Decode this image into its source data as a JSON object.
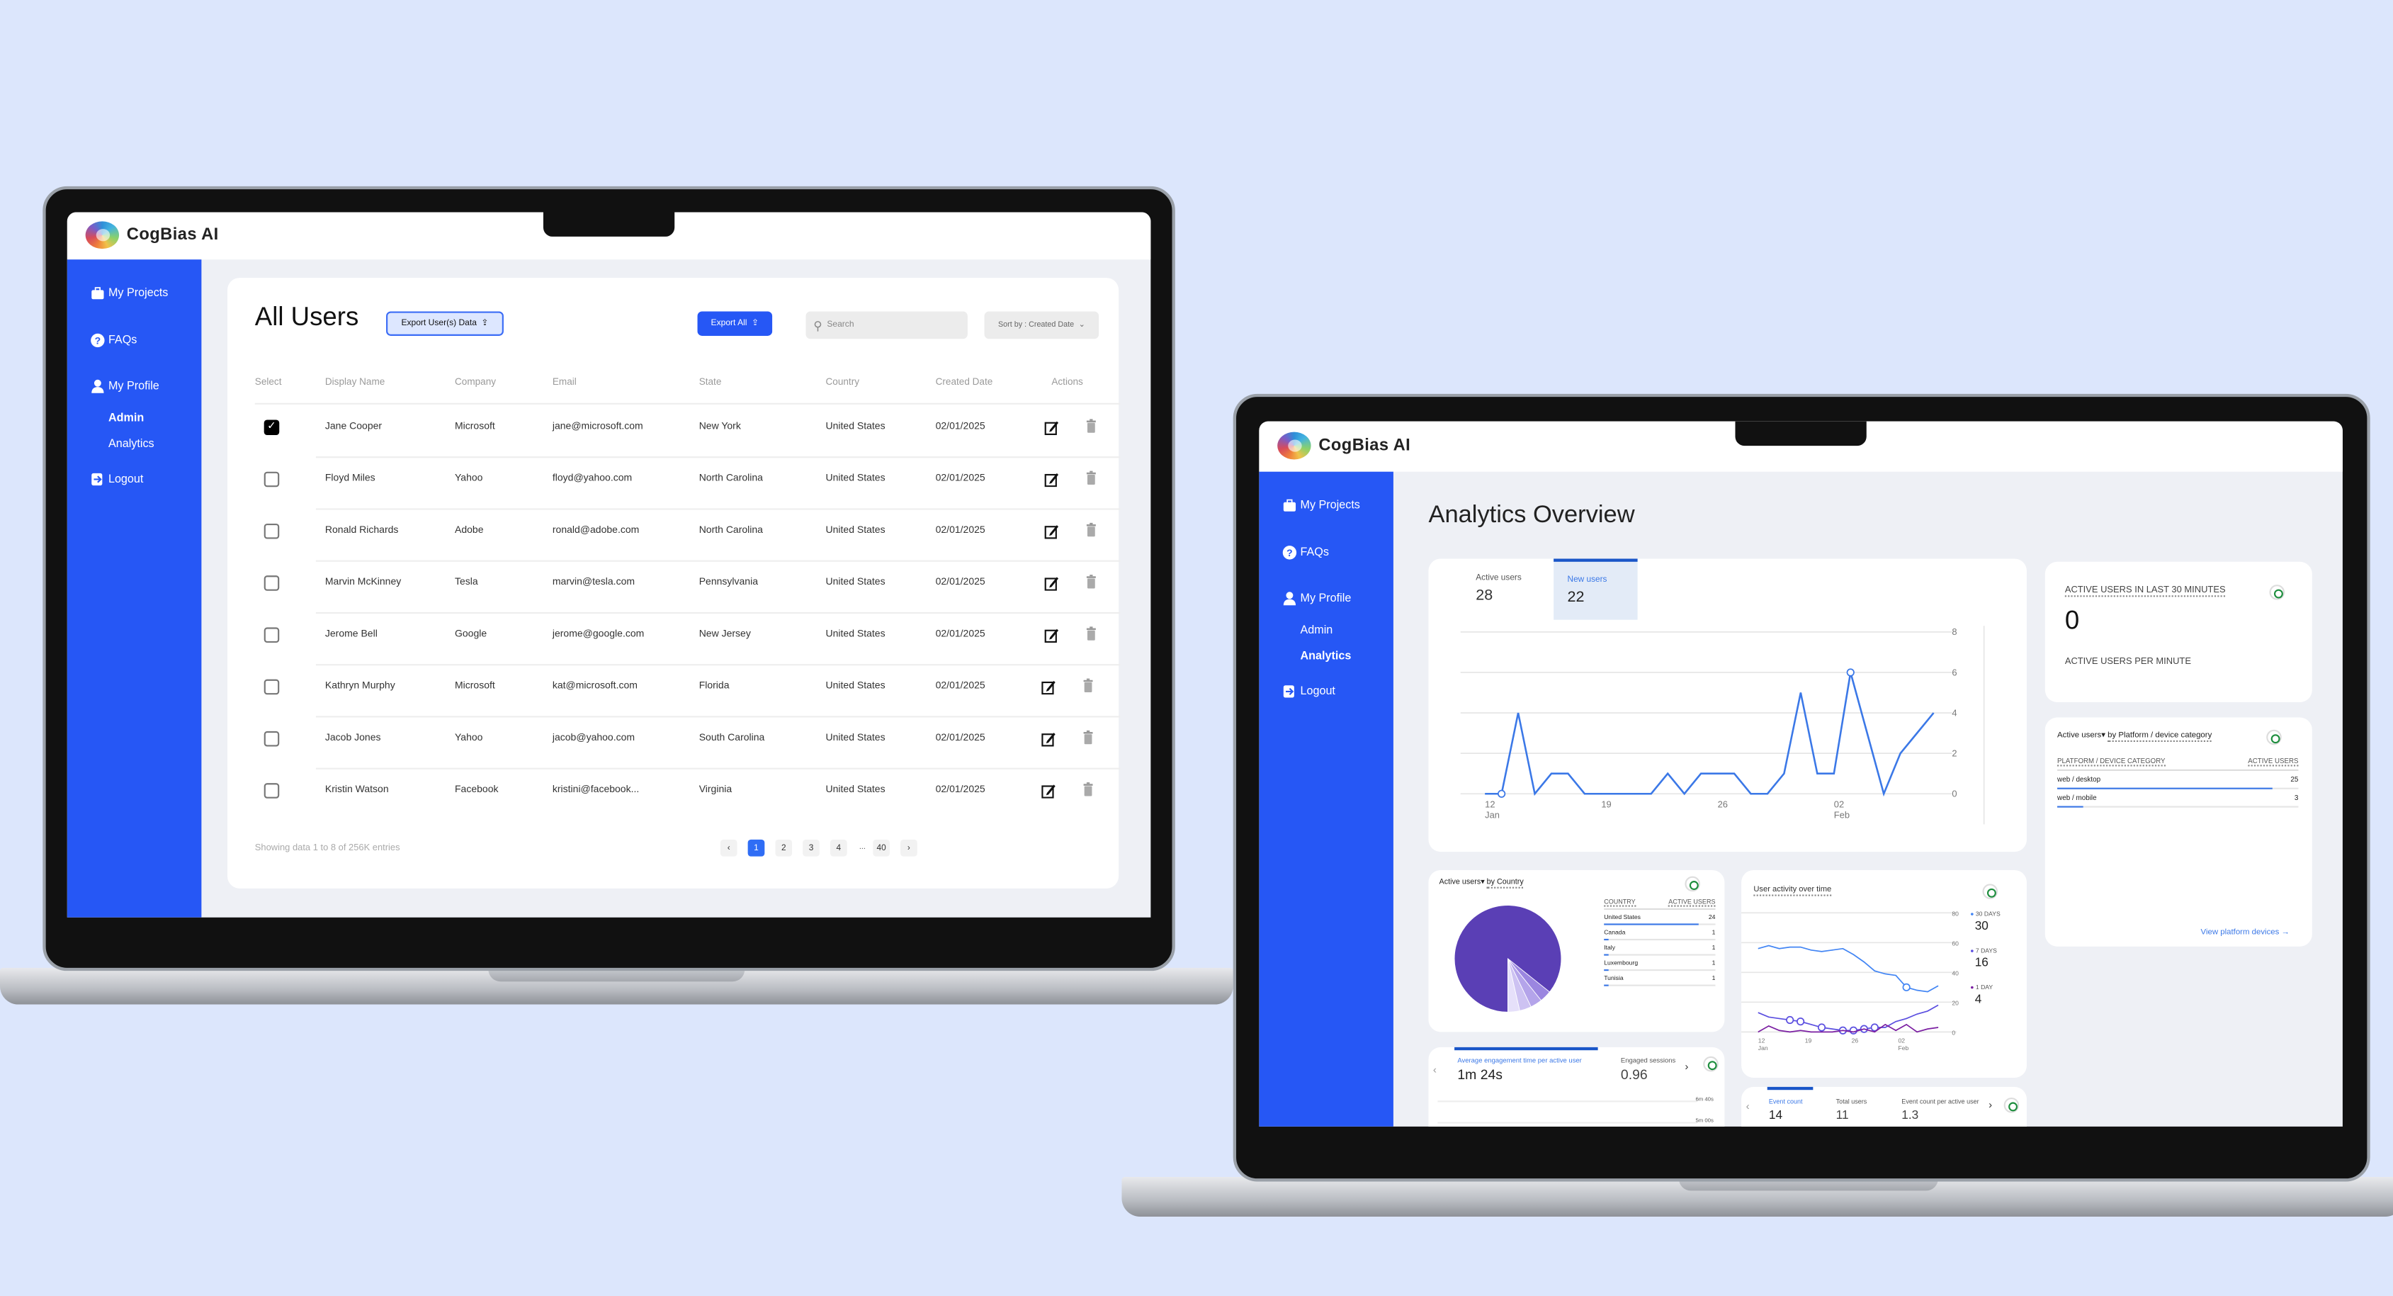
{
  "brand": "CogBias AI",
  "colors": {
    "background": "#dce6fc",
    "sidebar": "#2657f5",
    "accent": "#2f6df5",
    "chart_line": "#3b78e7",
    "pie": "#5a3fb5"
  },
  "sidebar": {
    "items": [
      {
        "label": "My Projects",
        "icon": "briefcase-icon"
      },
      {
        "label": "FAQs",
        "icon": "question-circle-icon"
      },
      {
        "label": "My Profile",
        "icon": "user-icon"
      },
      {
        "label": "Admin"
      },
      {
        "label": "Analytics"
      },
      {
        "label": "Logout",
        "icon": "logout-icon"
      }
    ]
  },
  "users_page": {
    "title": "All Users",
    "export_selected": "Export User(s) Data",
    "export_all": "Export All",
    "search_placeholder": "Search",
    "sort": "Sort by : Created Date",
    "columns": [
      "Select",
      "Display Name",
      "Company",
      "Email",
      "State",
      "Country",
      "Created Date",
      "Actions"
    ],
    "rows": [
      {
        "checked": true,
        "name": "Jane Cooper",
        "company": "Microsoft",
        "email": "jane@microsoft.com",
        "state": "New York",
        "country": "United States",
        "date": "02/01/2025"
      },
      {
        "checked": false,
        "name": "Floyd Miles",
        "company": "Yahoo",
        "email": "floyd@yahoo.com",
        "state": "North Carolina",
        "country": "United States",
        "date": "02/01/2025"
      },
      {
        "checked": false,
        "name": "Ronald Richards",
        "company": "Adobe",
        "email": "ronald@adobe.com",
        "state": "North Carolina",
        "country": "United States",
        "date": "02/01/2025"
      },
      {
        "checked": false,
        "name": "Marvin McKinney",
        "company": "Tesla",
        "email": "marvin@tesla.com",
        "state": "Pennsylvania",
        "country": "United States",
        "date": "02/01/2025"
      },
      {
        "checked": false,
        "name": "Jerome Bell",
        "company": "Google",
        "email": "jerome@google.com",
        "state": "New Jersey",
        "country": "United States",
        "date": "02/01/2025"
      },
      {
        "checked": false,
        "name": "Kathryn Murphy",
        "company": "Microsoft",
        "email": "kat@microsoft.com",
        "state": "Florida",
        "country": "United States",
        "date": "02/01/2025"
      },
      {
        "checked": false,
        "name": "Jacob Jones",
        "company": "Yahoo",
        "email": "jacob@yahoo.com",
        "state": "South Carolina",
        "country": "United States",
        "date": "02/01/2025"
      },
      {
        "checked": false,
        "name": "Kristin Watson",
        "company": "Facebook",
        "email": "kristini@facebook...",
        "state": "Virginia",
        "country": "United States",
        "date": "02/01/2025"
      }
    ],
    "footer": "Showing data 1 to 8 of  256K entries",
    "pagination": {
      "prev": "‹",
      "pages": [
        "1",
        "2",
        "3",
        "4"
      ],
      "ellipsis": "...",
      "last": "40",
      "next": "›",
      "current": "1"
    }
  },
  "analytics": {
    "title": "Analytics Overview",
    "tabs": [
      {
        "label": "Active users",
        "value": "28"
      },
      {
        "label": "New users",
        "value": "22",
        "active": true
      }
    ],
    "realtime": {
      "title": "ACTIVE USERS IN LAST 30 MINUTES",
      "value": "0",
      "subtitle": "ACTIVE USERS PER MINUTE"
    },
    "platform": {
      "title_metric": "Active users",
      "title_dim": "by Platform / device category",
      "col1": "PLATFORM / DEVICE CATEGORY",
      "col2": "ACTIVE USERS",
      "rows": [
        {
          "label": "web / desktop",
          "value": "25"
        },
        {
          "label": "web / mobile",
          "value": "3"
        }
      ],
      "link": "View platform devices"
    },
    "country": {
      "title_metric": "Active users",
      "title_dim": "by Country",
      "col1": "COUNTRY",
      "col2": "ACTIVE USERS",
      "rows": [
        {
          "label": "United States",
          "value": "24"
        },
        {
          "label": "Canada",
          "value": "1"
        },
        {
          "label": "Italy",
          "value": "1"
        },
        {
          "label": "Luxembourg",
          "value": "1"
        },
        {
          "label": "Tunisia",
          "value": "1"
        }
      ]
    },
    "activity": {
      "title": "User activity over time",
      "legend": [
        {
          "label": "30 DAYS",
          "value": "30",
          "color": "#4285f4"
        },
        {
          "label": "7 DAYS",
          "value": "16",
          "color": "#5b4fe0"
        },
        {
          "label": "1 DAY",
          "value": "4",
          "color": "#7b1fa2"
        }
      ]
    },
    "engagement": {
      "metric1": "Average engagement time per active user",
      "value1": "1m 24s",
      "metric2": "Engaged sessions p",
      "value2": "0.96",
      "axis": [
        "6m 40s",
        "5m 00s"
      ]
    },
    "events": {
      "metric1": "Event count",
      "value1": "14",
      "metric2": "Total users",
      "value2": "11",
      "metric3": "Event count per active user",
      "value3": "1.3"
    }
  },
  "chart_data": [
    {
      "type": "line",
      "title": "",
      "ylim": [
        0,
        8
      ],
      "yticks": [
        "0",
        "2",
        "4",
        "6",
        "8"
      ],
      "xticks": [
        {
          "label": "12",
          "sub": "Jan",
          "index": 0
        },
        {
          "label": "19",
          "sub": "",
          "index": 7
        },
        {
          "label": "26",
          "sub": "",
          "index": 14
        },
        {
          "label": "02",
          "sub": "Feb",
          "index": 21
        }
      ],
      "series": [
        {
          "name": "New users",
          "values": [
            0,
            0,
            4,
            0,
            1,
            1,
            0,
            0,
            0,
            0,
            0,
            1,
            0,
            1,
            1,
            1,
            0,
            0,
            1,
            5,
            1,
            1,
            6,
            3,
            0,
            2,
            3,
            4
          ]
        }
      ]
    },
    {
      "type": "line",
      "title": "User activity over time",
      "ylim": [
        0,
        80
      ],
      "yticks": [
        "0",
        "20",
        "40",
        "60",
        "80"
      ],
      "xticks": [
        {
          "label": "12",
          "sub": "Jan",
          "index": 0
        },
        {
          "label": "19",
          "sub": "",
          "index": 7
        },
        {
          "label": "26",
          "sub": "",
          "index": 14
        },
        {
          "label": "02",
          "sub": "Feb",
          "index": 21
        }
      ],
      "series": [
        {
          "name": "30 DAYS",
          "values": [
            56,
            58,
            56,
            57,
            57,
            55,
            54,
            55,
            56,
            52,
            47,
            41,
            39,
            38,
            30,
            28,
            27,
            31
          ]
        },
        {
          "name": "7 DAYS",
          "values": [
            13,
            10,
            9,
            8,
            7,
            5,
            3,
            2,
            1,
            1,
            2,
            3,
            3,
            7,
            9,
            12,
            14,
            18
          ]
        },
        {
          "name": "1 DAY",
          "values": [
            0,
            4,
            1,
            0,
            1,
            0,
            0,
            0,
            1,
            0,
            2,
            0,
            5,
            1,
            5,
            0,
            2,
            3
          ]
        }
      ]
    },
    {
      "type": "pie",
      "title": "Active users by Country",
      "categories": [
        "United States",
        "Canada",
        "Italy",
        "Luxembourg",
        "Tunisia"
      ],
      "values": [
        24,
        1,
        1,
        1,
        1
      ]
    }
  ]
}
